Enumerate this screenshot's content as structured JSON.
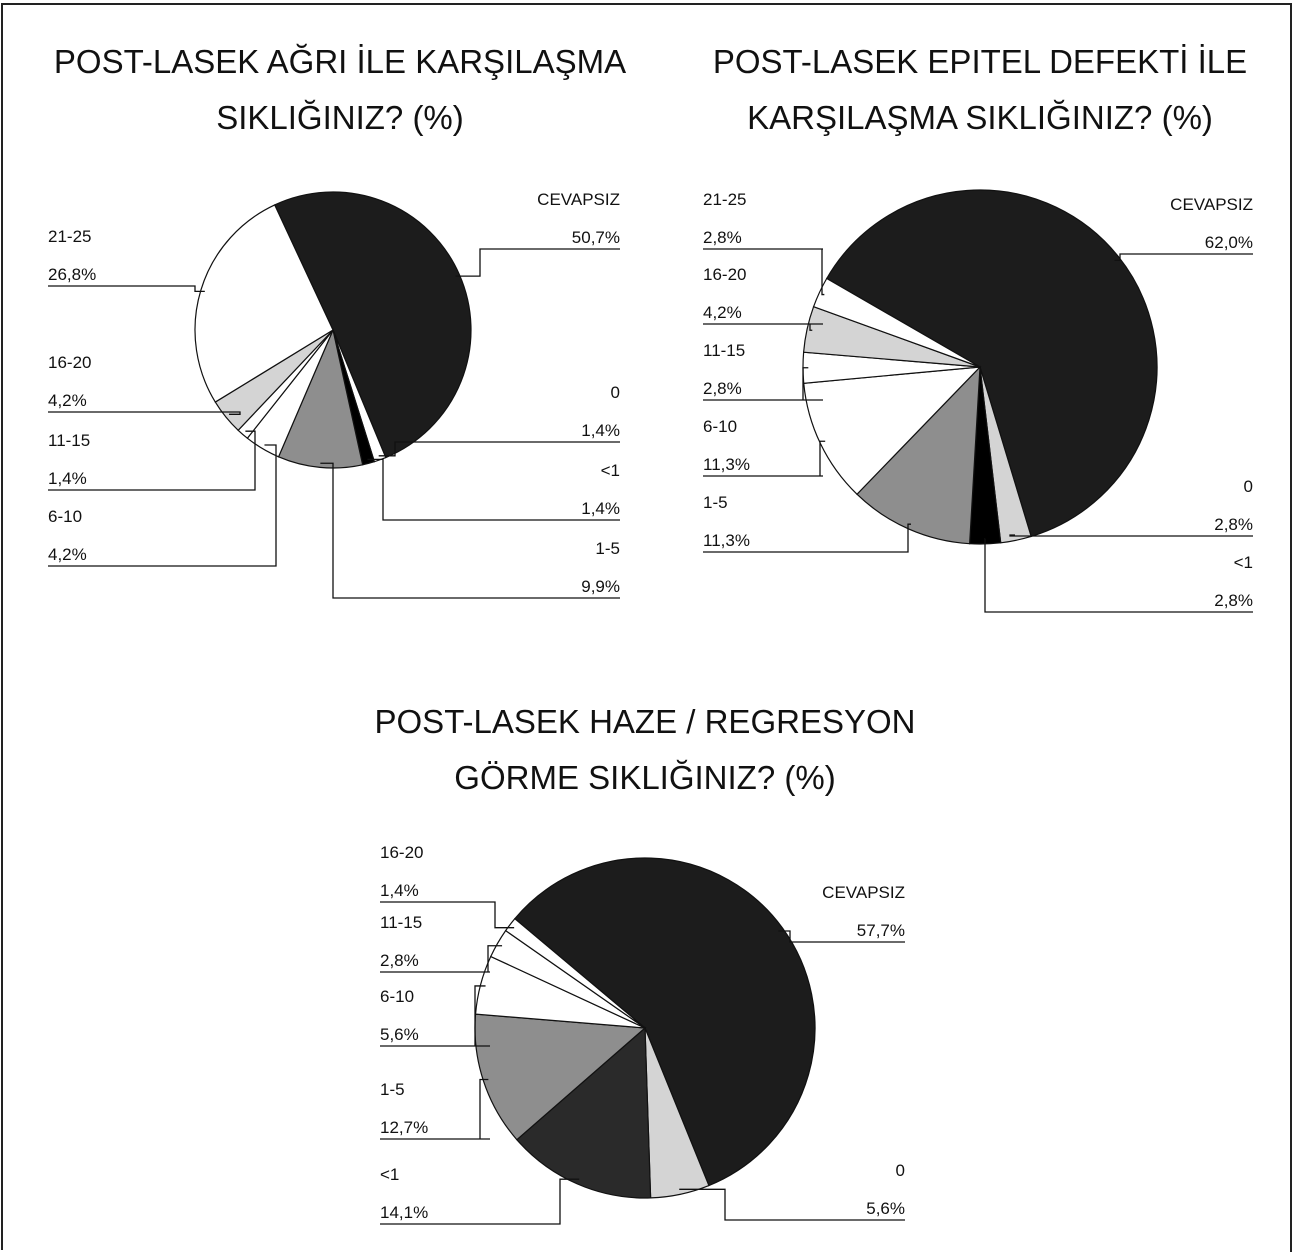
{
  "chart_data": [
    {
      "type": "pie",
      "title": "POST-LASEK AĞRI İLE KARŞILAŞMA SIKLIĞINIZ? (%)",
      "categories": [
        "CEVAPSIZ",
        "0",
        "<1",
        "1-5",
        "6-10",
        "11-15",
        "16-20",
        "21-25"
      ],
      "values": [
        50.7,
        1.4,
        1.4,
        9.9,
        4.2,
        1.4,
        4.2,
        26.8
      ],
      "value_labels": [
        "50,7%",
        "1,4%",
        "1,4%",
        "9,9%",
        "4,2%",
        "1,4%",
        "4,2%",
        "26,8%"
      ],
      "colors": [
        "#1c1c1c",
        "#ffffff",
        "#000000",
        "#8e8e8e",
        "#ffffff",
        "#ffffff",
        "#d4d4d4",
        "#ffffff"
      ]
    },
    {
      "type": "pie",
      "title": "POST-LASEK EPITEL DEFEKTİ İLE KARŞILAŞMA SIKLIĞINIZ? (%)",
      "categories": [
        "CEVAPSIZ",
        "0",
        "<1",
        "1-5",
        "6-10",
        "11-15",
        "16-20",
        "21-25"
      ],
      "values": [
        62.0,
        2.8,
        2.8,
        11.3,
        11.3,
        2.8,
        4.2,
        2.8
      ],
      "value_labels": [
        "62,0%",
        "2,8%",
        "2,8%",
        "11,3%",
        "11,3%",
        "2,8%",
        "4,2%",
        "2,8%"
      ],
      "colors": [
        "#1c1c1c",
        "#d4d4d4",
        "#000000",
        "#8e8e8e",
        "#ffffff",
        "#ffffff",
        "#d4d4d4",
        "#ffffff"
      ]
    },
    {
      "type": "pie",
      "title": "POST-LASEK HAZE / REGRESYON GÖRME SIKLIĞINIZ? (%)",
      "categories": [
        "CEVAPSIZ",
        "0",
        "<1",
        "1-5",
        "6-10",
        "11-15",
        "16-20"
      ],
      "values": [
        57.7,
        5.6,
        14.1,
        12.7,
        5.6,
        2.8,
        1.4
      ],
      "value_labels": [
        "57,7%",
        "5,6%",
        "14,1%",
        "12,7%",
        "5,6%",
        "2,8%",
        "1,4%"
      ],
      "colors": [
        "#1c1c1c",
        "#d4d4d4",
        "#2a2a2a",
        "#8e8e8e",
        "#ffffff",
        "#ffffff",
        "#ffffff"
      ]
    }
  ]
}
